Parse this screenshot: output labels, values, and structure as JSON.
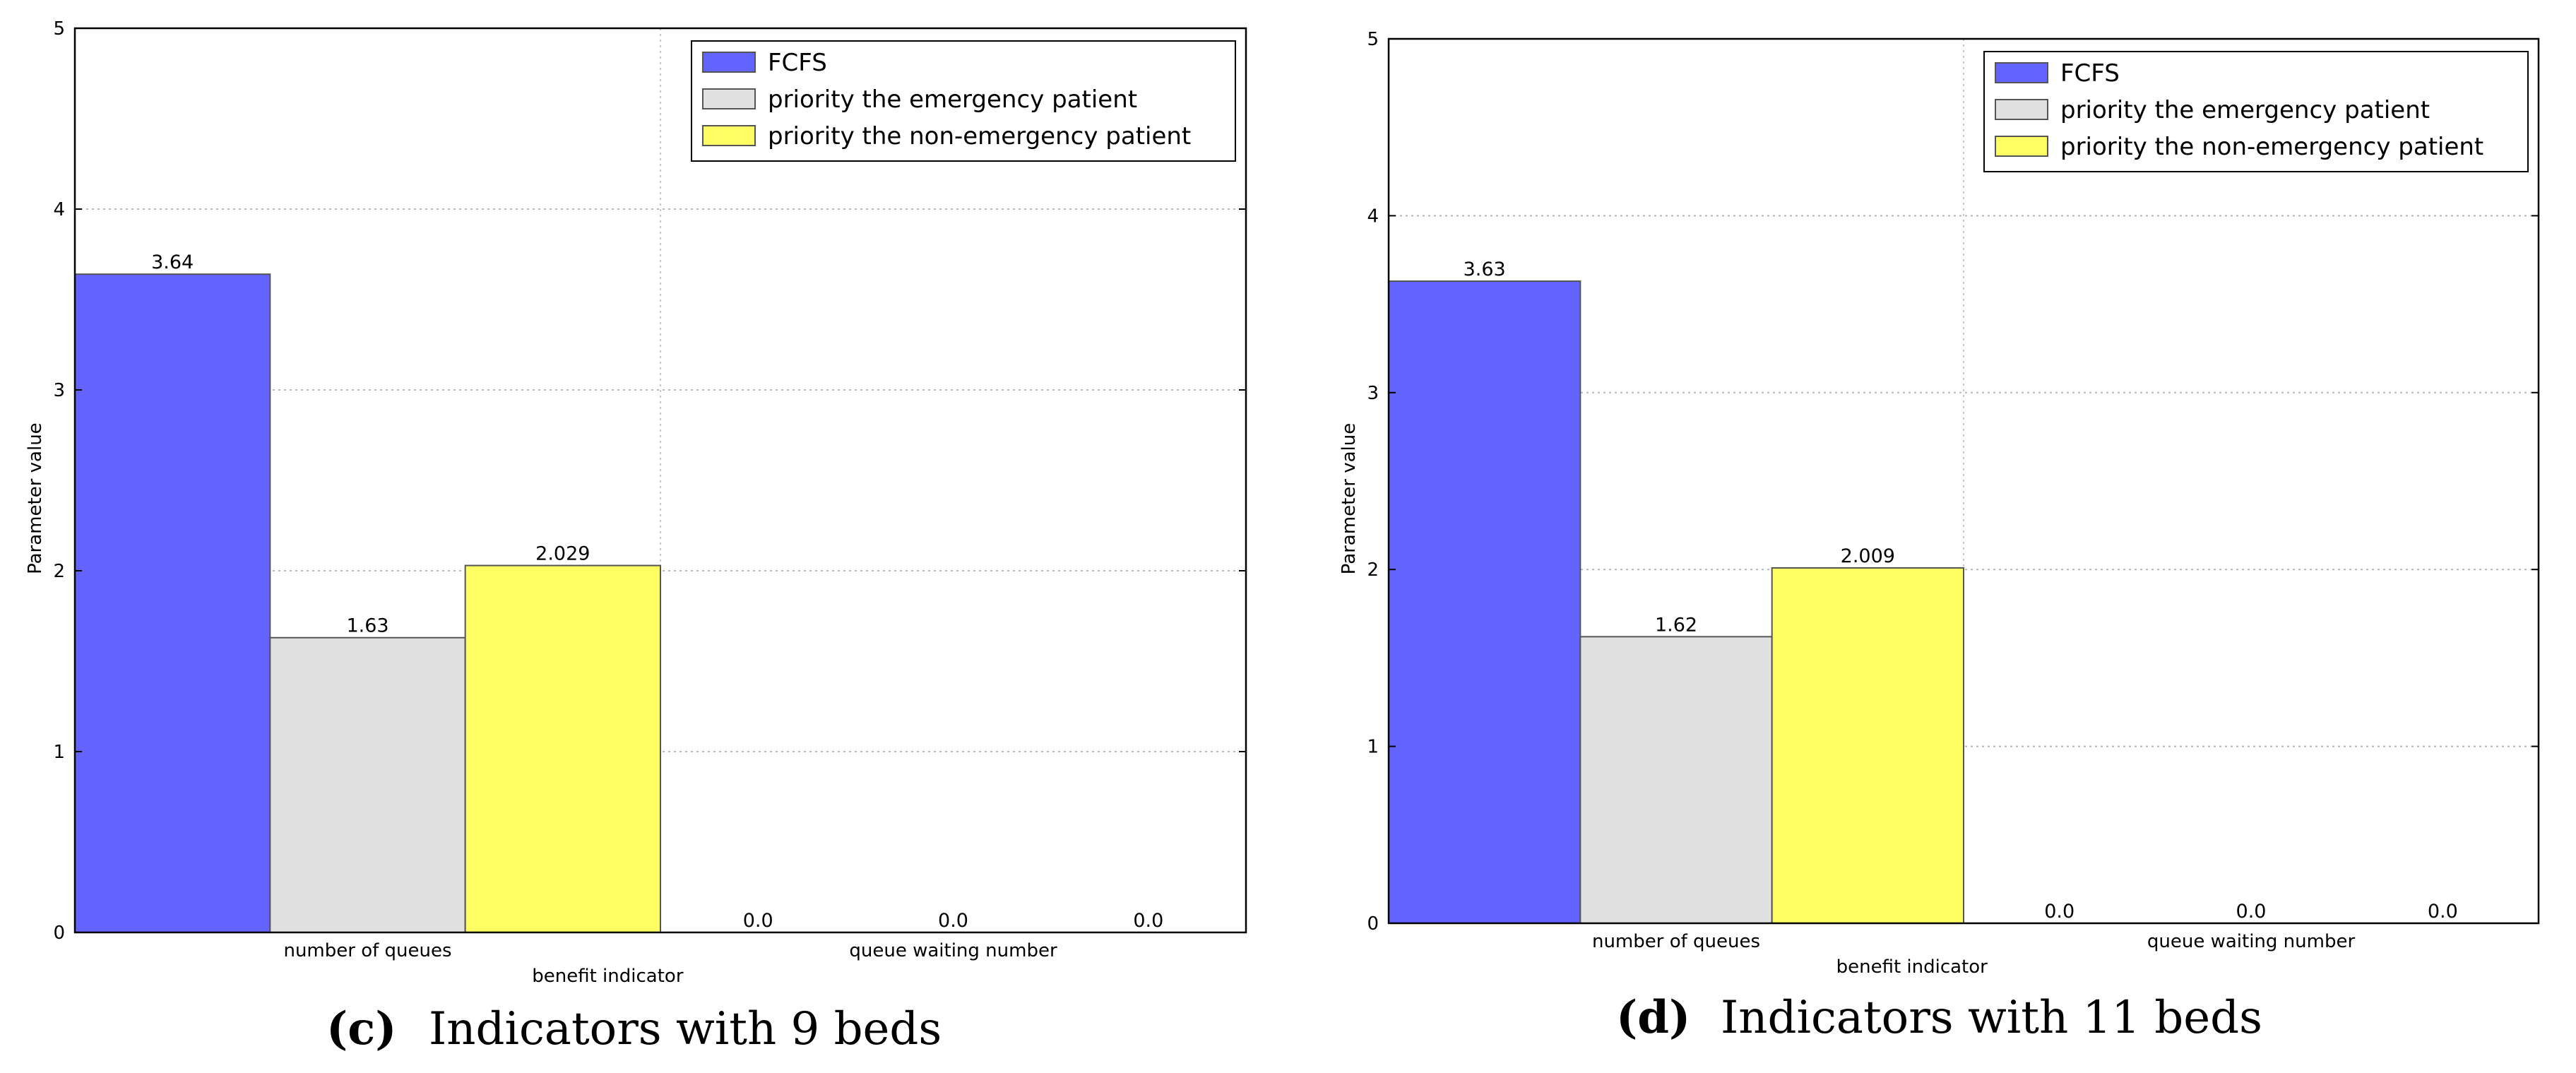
{
  "chart_data": [
    {
      "type": "bar",
      "title": "",
      "xlabel": "benefit indicator",
      "ylabel": "Parameter value",
      "ylim": [
        0,
        5
      ],
      "yticks": [
        "0",
        "1",
        "2",
        "3",
        "4",
        "5"
      ],
      "grid": true,
      "legend_position": "top-right",
      "categories": [
        "number of queues",
        "queue waiting number"
      ],
      "series": [
        {
          "name": "FCFS",
          "color": "#6363ff",
          "values": [
            3.64,
            0.0
          ],
          "labels": [
            "3.64",
            "0.0"
          ]
        },
        {
          "name": "priority the emergency patient",
          "color": "#e1e1e1",
          "values": [
            1.63,
            0.0
          ],
          "labels": [
            "1.63",
            "0.0"
          ]
        },
        {
          "name": "priority the non-emergency patient",
          "color": "#ffff63",
          "values": [
            2.029,
            0.0
          ],
          "labels": [
            "2.029",
            "0.0"
          ]
        }
      ],
      "caption_tag": "(c)",
      "caption_text": "Indicators with 9 beds"
    },
    {
      "type": "bar",
      "title": "",
      "xlabel": "benefit indicator",
      "ylabel": "Parameter value",
      "ylim": [
        0,
        5
      ],
      "yticks": [
        "0",
        "1",
        "2",
        "3",
        "4",
        "5"
      ],
      "grid": true,
      "legend_position": "top-right",
      "categories": [
        "number of queues",
        "queue waiting number"
      ],
      "series": [
        {
          "name": "FCFS",
          "color": "#6363ff",
          "values": [
            3.63,
            0.0
          ],
          "labels": [
            "3.63",
            "0.0"
          ]
        },
        {
          "name": "priority the emergency patient",
          "color": "#e1e1e1",
          "values": [
            1.62,
            0.0
          ],
          "labels": [
            "1.62",
            "0.0"
          ]
        },
        {
          "name": "priority the non-emergency patient",
          "color": "#ffff63",
          "values": [
            2.009,
            0.0
          ],
          "labels": [
            "2.009",
            "0.0"
          ]
        }
      ],
      "caption_tag": "(d)",
      "caption_text": "Indicators with 11 beds"
    }
  ]
}
